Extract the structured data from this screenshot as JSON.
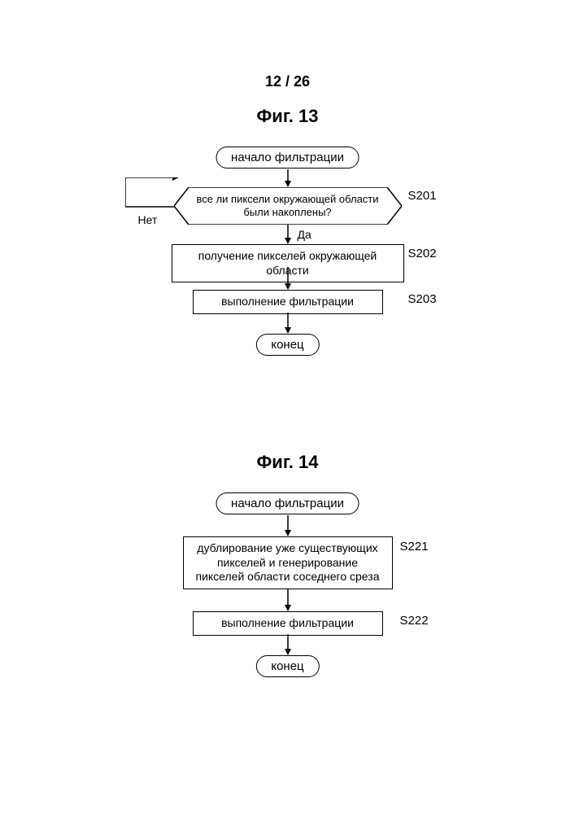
{
  "page_number": "12 / 26",
  "fig13": {
    "title": "Фиг. 13",
    "start": "начало фильтрации",
    "decision": "все ли пиксели окружающей области\nбыли накоплены?",
    "no_label": "Нет",
    "yes_label": "Да",
    "s201_label": "S201",
    "step2": "получение пикселей окружающей области",
    "s202_label": "S202",
    "step3": "выполнение фильтрации",
    "s203_label": "S203",
    "end": "конец"
  },
  "fig14": {
    "title": "Фиг. 14",
    "start": "начало фильтрации",
    "step1": "дублирование уже существующих\nпикселей и генерирование\nпикселей области соседнего среза",
    "s221_label": "S221",
    "step2": "выполнение фильтрации",
    "s222_label": "S222",
    "end": "конец"
  },
  "style": {
    "stroke": "#000000",
    "background": "#ffffff",
    "font_family": "Arial",
    "title_fontsize": 22,
    "label_fontsize": 15,
    "body_fontsize": 14,
    "line_width": 1.5
  }
}
